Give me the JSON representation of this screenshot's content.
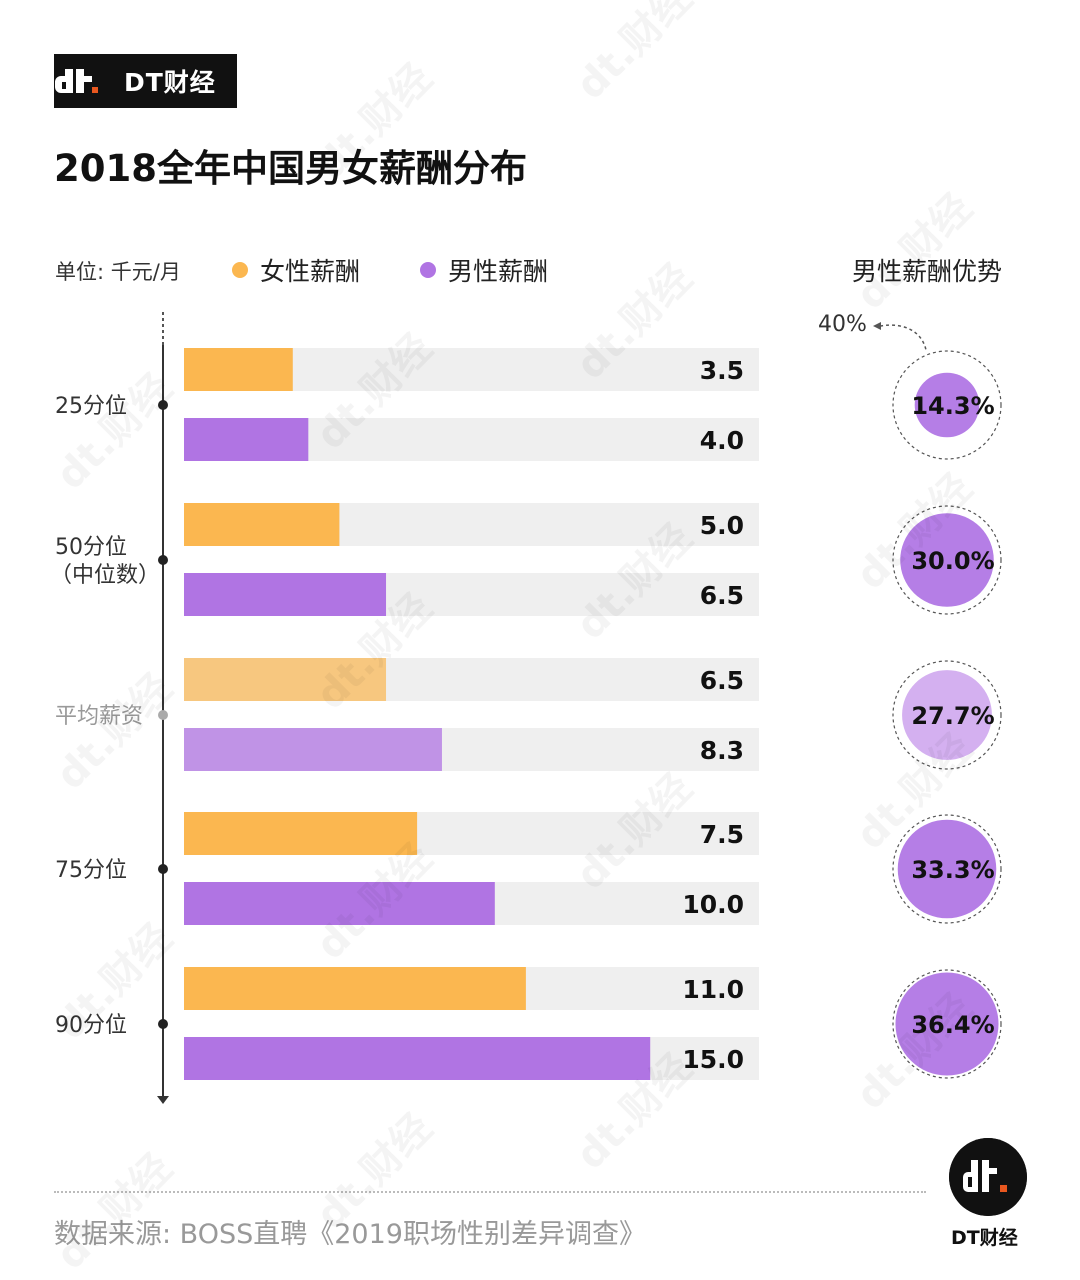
{
  "brand": {
    "name": "DT财经"
  },
  "watermark_text": "dt.财经",
  "chart_data": {
    "type": "bar",
    "orientation": "horizontal",
    "title": "2018全年中国男女薪酬分布",
    "unit": "单位: 千元/月",
    "categories": [
      "25分位",
      "50分位\n（中位数）",
      "平均薪资",
      "75分位",
      "90分位"
    ],
    "series": [
      {
        "name": "女性薪酬",
        "color": "#fbb750",
        "values": [
          3.5,
          5.0,
          6.5,
          7.5,
          11.0
        ]
      },
      {
        "name": "男性薪酬",
        "color": "#b074e3",
        "values": [
          4.0,
          6.5,
          8.3,
          10.0,
          15.0
        ]
      }
    ],
    "value_labels": {
      "female": [
        "3.5",
        "5.0",
        "6.5",
        "7.5",
        "11.0"
      ],
      "male": [
        "4.0",
        "6.5",
        "8.3",
        "10.0",
        "15.0"
      ]
    },
    "xlim": [
      0,
      18.5
    ],
    "advantage": {
      "title": "男性薪酬优势",
      "reference_label": "40%",
      "reference_value": 40,
      "values": [
        14.3,
        30.0,
        27.7,
        33.3,
        36.4
      ],
      "labels": [
        "14.3%",
        "30.0%",
        "27.7%",
        "33.3%",
        "36.4%"
      ]
    },
    "highlighted_category": "平均薪资"
  },
  "source": "数据来源: BOSS直聘《2019职场性别差异调查》"
}
